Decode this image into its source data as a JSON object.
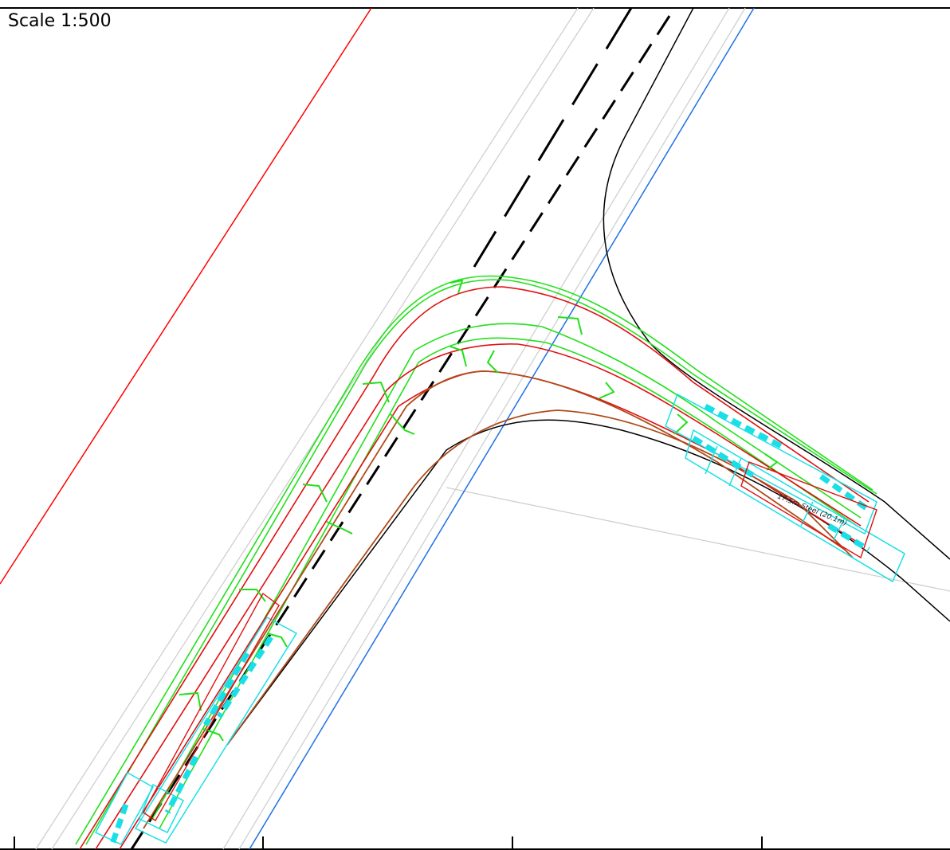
{
  "drawing": {
    "scale_label": "Scale 1:500",
    "vehicle_label": "17.5m Steel (20.1m)"
  },
  "colors": {
    "frame": "#000000",
    "kerb": "#000000",
    "property_left": "#ff0000",
    "property_right": "#1e6fe6",
    "lane_lines": "#cfcfcf",
    "centreline": "#000000",
    "swept_path_green": "#22e01a",
    "swept_path_red": "#e01010",
    "swept_path_brown": "#b04a1a",
    "vehicle_body": "#19e0e6"
  },
  "icons": {
    "tick_marks": "scale-tick-mark",
    "chevrons": "direction-chevron-icon"
  }
}
